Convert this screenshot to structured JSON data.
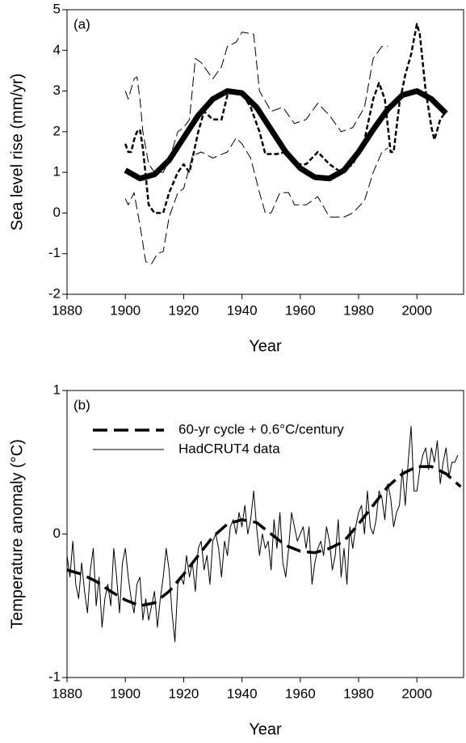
{
  "chart_data": [
    {
      "type": "line",
      "panel_label": "(a)",
      "x_label": "Year",
      "y_label": "Sea level rise (mm/yr)",
      "xlim": [
        1880,
        2016
      ],
      "xticks": [
        1880,
        1900,
        1920,
        1940,
        1960,
        1980,
        2000
      ],
      "ylim": [
        -2,
        5
      ],
      "yticks": [
        -2,
        -1,
        0,
        1,
        2,
        3,
        4,
        5
      ],
      "series": [
        {
          "color": "#000000",
          "width": 1,
          "dash": "12 5",
          "x": [
            1900,
            1901,
            1903,
            1904,
            1905,
            1906,
            1908,
            1910,
            1913,
            1915,
            1918,
            1920,
            1922,
            1924,
            1926,
            1930,
            1933,
            1935,
            1938,
            1940,
            1944,
            1946,
            1950,
            1954,
            1958,
            1962,
            1966,
            1970,
            1974,
            1978,
            1982,
            1985,
            1988,
            1990
          ],
          "values": [
            3.0,
            2.8,
            3.3,
            3.35,
            2.8,
            2.0,
            1.2,
            1.0,
            1.0,
            1.3,
            2.0,
            2.1,
            2.3,
            3.8,
            3.7,
            3.3,
            3.6,
            4.1,
            4.2,
            4.45,
            4.4,
            3.0,
            2.5,
            2.6,
            2.2,
            2.3,
            2.7,
            2.4,
            2.0,
            2.1,
            2.6,
            3.8,
            4.1,
            4.1
          ]
        },
        {
          "color": "#000000",
          "width": 1,
          "dash": "12 5",
          "x": [
            1900,
            1901,
            1903,
            1905,
            1907,
            1909,
            1911,
            1913,
            1915,
            1918,
            1920,
            1923,
            1926,
            1930,
            1935,
            1938,
            1940,
            1943,
            1946,
            1948,
            1950,
            1953,
            1956,
            1958,
            1962,
            1966,
            1970,
            1975,
            1978,
            1982,
            1985,
            1988,
            1990
          ],
          "values": [
            0.35,
            0.2,
            0.5,
            -0.3,
            -1.2,
            -1.25,
            -1.0,
            -0.95,
            -0.1,
            0.5,
            0.6,
            1.4,
            1.5,
            1.35,
            1.5,
            1.85,
            1.7,
            1.35,
            0.5,
            0.0,
            0.0,
            0.5,
            0.5,
            0.2,
            0.2,
            0.4,
            -0.1,
            -0.1,
            0.0,
            0.3,
            1.0,
            1.5,
            1.6
          ]
        },
        {
          "color": "#000000",
          "width": 2.5,
          "dash": "6 3",
          "x": [
            1900,
            1901,
            1902,
            1903,
            1904,
            1905,
            1906,
            1907,
            1908,
            1910,
            1913,
            1915,
            1918,
            1920,
            1922,
            1925,
            1927,
            1930,
            1933,
            1935,
            1938,
            1940,
            1943,
            1946,
            1948,
            1952,
            1955,
            1958,
            1962,
            1966,
            1970,
            1974,
            1978,
            1982,
            1985,
            1987,
            1989,
            1991,
            1992,
            1994,
            1996,
            1998,
            2000,
            2001,
            2003,
            2005,
            2006,
            2008,
            2010
          ],
          "values": [
            1.7,
            1.5,
            1.5,
            1.8,
            2.0,
            2.05,
            1.6,
            0.9,
            0.2,
            0.0,
            0.0,
            0.5,
            1.0,
            1.2,
            1.0,
            2.0,
            2.5,
            2.3,
            2.3,
            2.9,
            3.0,
            2.95,
            2.6,
            2.0,
            1.45,
            1.45,
            1.5,
            1.2,
            1.2,
            1.5,
            1.2,
            1.0,
            1.2,
            1.8,
            2.8,
            3.2,
            2.8,
            1.5,
            1.5,
            2.7,
            3.4,
            3.9,
            4.65,
            4.4,
            3.0,
            2.1,
            1.8,
            2.3,
            2.5
          ]
        },
        {
          "color": "#000000",
          "width": 7,
          "dash": "none",
          "x": [
            1900,
            1905,
            1910,
            1915,
            1920,
            1925,
            1930,
            1935,
            1940,
            1945,
            1950,
            1955,
            1960,
            1965,
            1970,
            1975,
            1980,
            1985,
            1990,
            1995,
            2000,
            2005,
            2010
          ],
          "values": [
            1.05,
            0.85,
            0.95,
            1.3,
            1.85,
            2.4,
            2.8,
            3.0,
            2.95,
            2.6,
            2.05,
            1.5,
            1.1,
            0.88,
            0.85,
            1.05,
            1.5,
            2.05,
            2.55,
            2.9,
            3.0,
            2.8,
            2.45
          ]
        }
      ]
    },
    {
      "type": "line",
      "panel_label": "(b)",
      "x_label": "Year",
      "y_label": "Temperature anomaly (°C)",
      "xlim": [
        1880,
        2016
      ],
      "xticks": [
        1880,
        1900,
        1920,
        1940,
        1960,
        1980,
        2000
      ],
      "ylim": [
        -1,
        1
      ],
      "yticks": [
        -1,
        0,
        1
      ],
      "legend": "upper left",
      "series": [
        {
          "name": "HadCRUT4 data",
          "color": "#000000",
          "width": 1,
          "dash": "none",
          "x": [
            1880,
            1881,
            1882,
            1883,
            1884,
            1885,
            1886,
            1887,
            1888,
            1889,
            1890,
            1891,
            1892,
            1893,
            1894,
            1895,
            1896,
            1897,
            1898,
            1899,
            1900,
            1901,
            1902,
            1903,
            1904,
            1905,
            1906,
            1907,
            1908,
            1909,
            1910,
            1911,
            1912,
            1913,
            1914,
            1915,
            1916,
            1917,
            1918,
            1919,
            1920,
            1921,
            1922,
            1923,
            1924,
            1925,
            1926,
            1927,
            1928,
            1929,
            1930,
            1931,
            1932,
            1933,
            1934,
            1935,
            1936,
            1937,
            1938,
            1939,
            1940,
            1941,
            1942,
            1943,
            1944,
            1945,
            1946,
            1947,
            1948,
            1949,
            1950,
            1951,
            1952,
            1953,
            1954,
            1955,
            1956,
            1957,
            1958,
            1959,
            1960,
            1961,
            1962,
            1963,
            1964,
            1965,
            1966,
            1967,
            1968,
            1969,
            1970,
            1971,
            1972,
            1973,
            1974,
            1975,
            1976,
            1977,
            1978,
            1979,
            1980,
            1981,
            1982,
            1983,
            1984,
            1985,
            1986,
            1987,
            1988,
            1989,
            1990,
            1991,
            1992,
            1993,
            1994,
            1995,
            1996,
            1997,
            1998,
            1999,
            2000,
            2001,
            2002,
            2003,
            2004,
            2005,
            2006,
            2007,
            2008,
            2009,
            2010,
            2011,
            2012,
            2013,
            2014
          ],
          "values": [
            -0.15,
            -0.3,
            -0.05,
            -0.35,
            -0.45,
            -0.2,
            -0.4,
            -0.55,
            -0.25,
            -0.1,
            -0.5,
            -0.3,
            -0.65,
            -0.45,
            -0.35,
            -0.5,
            -0.1,
            -0.3,
            -0.55,
            -0.2,
            -0.1,
            -0.3,
            -0.45,
            -0.55,
            -0.35,
            -0.3,
            -0.6,
            -0.45,
            -0.6,
            -0.5,
            -0.4,
            -0.65,
            -0.45,
            -0.3,
            -0.1,
            -0.25,
            -0.55,
            -0.75,
            -0.35,
            -0.3,
            -0.35,
            -0.15,
            -0.3,
            -0.2,
            -0.4,
            -0.1,
            -0.05,
            -0.25,
            -0.15,
            -0.35,
            -0.05,
            0.0,
            -0.1,
            -0.3,
            -0.05,
            -0.15,
            0.05,
            0.1,
            0.0,
            0.15,
            0.05,
            0.2,
            0.0,
            0.1,
            0.3,
            0.05,
            -0.15,
            0.0,
            -0.1,
            -0.05,
            -0.25,
            0.1,
            -0.1,
            0.15,
            -0.2,
            -0.3,
            -0.1,
            0.15,
            0.05,
            -0.05,
            0.0,
            0.05,
            -0.1,
            0.05,
            -0.35,
            -0.2,
            -0.1,
            -0.05,
            -0.15,
            0.05,
            -0.05,
            -0.25,
            -0.15,
            0.1,
            -0.3,
            -0.1,
            -0.35,
            0.05,
            -0.1,
            0.05,
            0.15,
            0.2,
            0.0,
            0.3,
            0.05,
            0.0,
            0.1,
            0.3,
            0.25,
            0.1,
            0.35,
            0.25,
            0.05,
            0.15,
            0.2,
            0.45,
            0.2,
            0.5,
            0.75,
            0.3,
            0.3,
            0.45,
            0.55,
            0.6,
            0.45,
            0.6,
            0.5,
            0.65,
            0.35,
            0.5,
            0.6,
            0.4,
            0.5,
            0.5,
            0.55
          ]
        },
        {
          "name": "60-yr cycle + 0.6°C/century",
          "color": "#000000",
          "width": 3.5,
          "dash": "18 8",
          "x": [
            1880,
            1885,
            1890,
            1895,
            1900,
            1905,
            1910,
            1915,
            1920,
            1925,
            1930,
            1935,
            1940,
            1945,
            1950,
            1955,
            1960,
            1965,
            1970,
            1975,
            1980,
            1985,
            1990,
            1995,
            2000,
            2005,
            2010,
            2015
          ],
          "values": [
            -0.25,
            -0.28,
            -0.33,
            -0.4,
            -0.46,
            -0.5,
            -0.48,
            -0.4,
            -0.28,
            -0.15,
            -0.02,
            0.07,
            0.1,
            0.08,
            0.0,
            -0.08,
            -0.12,
            -0.13,
            -0.1,
            -0.05,
            0.07,
            0.2,
            0.33,
            0.42,
            0.47,
            0.47,
            0.42,
            0.33
          ]
        }
      ]
    }
  ]
}
